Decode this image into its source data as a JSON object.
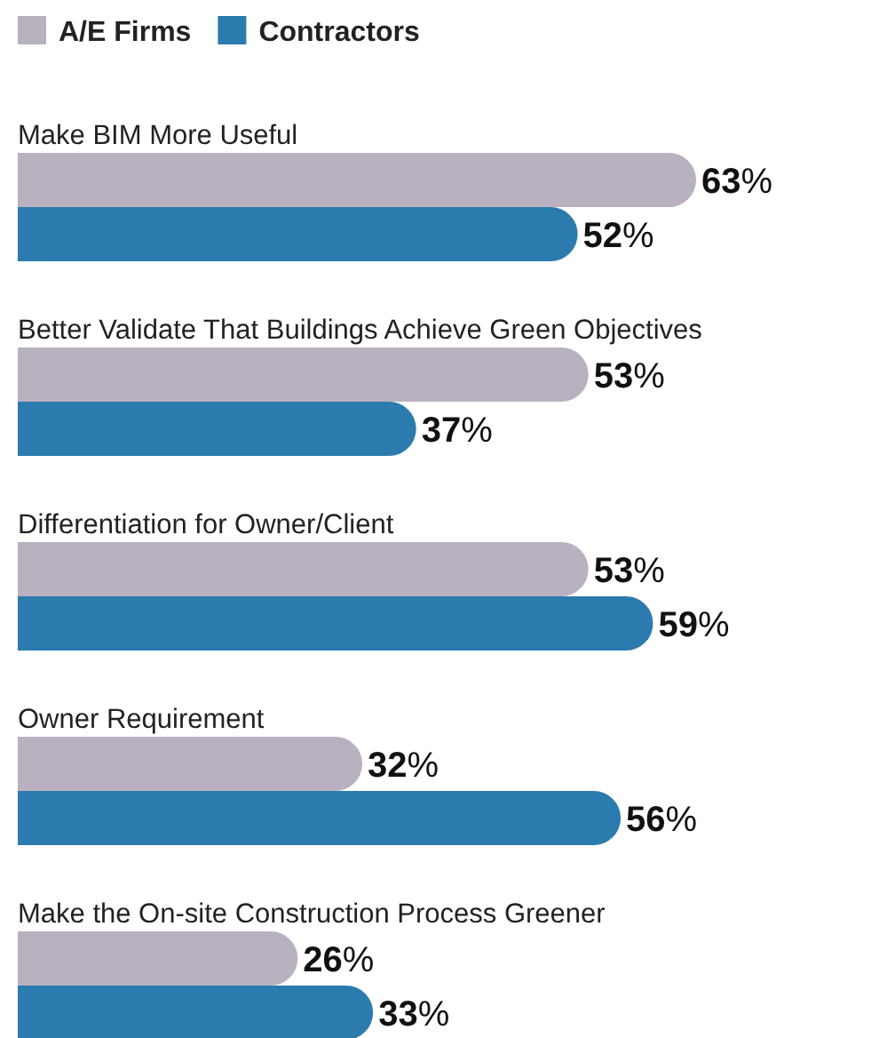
{
  "chart_data": {
    "type": "bar",
    "orientation": "horizontal",
    "legend": "top left",
    "categories": [
      "Make BIM More Useful",
      "Better Validate That Buildings Achieve Green Objectives",
      "Differentiation for Owner/Client",
      "Owner Requirement",
      "Make the On-site Construction Process Greener"
    ],
    "series": [
      {
        "name": "A/E Firms",
        "color": "#b9b1c0",
        "values": [
          63,
          53,
          53,
          32,
          26
        ],
        "value_labels": [
          "63%",
          "53%",
          "53%",
          "32%",
          "26%"
        ]
      },
      {
        "name": "Contractors",
        "color": "#2c7bae",
        "values": [
          52,
          37,
          59,
          56,
          33
        ],
        "value_labels": [
          "52%",
          "37%",
          "59%",
          "56%",
          "33%"
        ]
      }
    ]
  }
}
